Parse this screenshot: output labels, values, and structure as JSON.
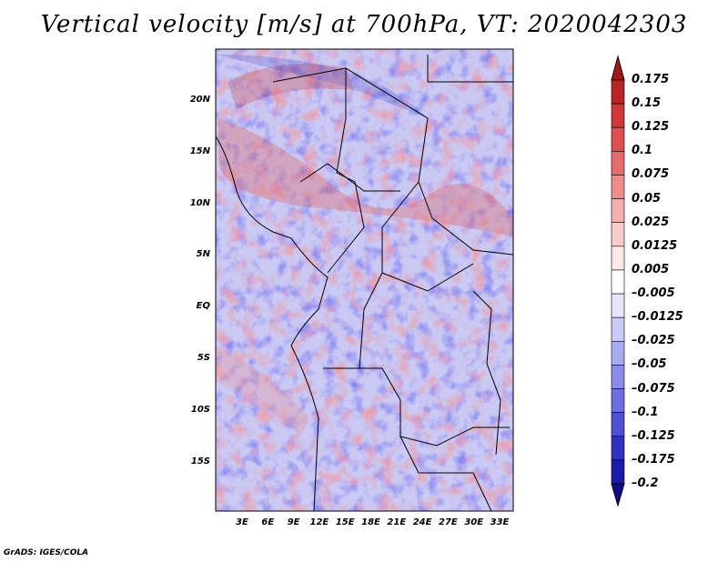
{
  "title": "Vertical velocity [m/s] at 700hPa, VT: 2020042303",
  "credit": "GrADS: IGES/COLA",
  "lat_labels": [
    "20N",
    "15N",
    "10N",
    "5N",
    "EQ",
    "5S",
    "10S",
    "15S"
  ],
  "lon_labels": [
    "3E",
    "6E",
    "9E",
    "12E",
    "15E",
    "18E",
    "21E",
    "24E",
    "27E",
    "30E",
    "33E"
  ],
  "colorbar": {
    "labels": [
      "0.175",
      "0.15",
      "0.125",
      "0.1",
      "0.075",
      "0.05",
      "0.025",
      "0.0125",
      "0.005",
      "–0.005",
      "–0.0125",
      "–0.025",
      "–0.05",
      "–0.075",
      "–0.1",
      "–0.125",
      "–0.175",
      "–0.2"
    ],
    "colors": [
      "#a01818",
      "#b92424",
      "#cd3838",
      "#dc5050",
      "#e56c6c",
      "#ee8c8c",
      "#f4aeae",
      "#f9cccc",
      "#fce8e8",
      "#ffffff",
      "#e4e4fa",
      "#cacaf6",
      "#aaaaf0",
      "#8c8ce8",
      "#6e6ee0",
      "#5050d2",
      "#3232c0",
      "#1c1ca8",
      "#100c8c"
    ]
  }
}
